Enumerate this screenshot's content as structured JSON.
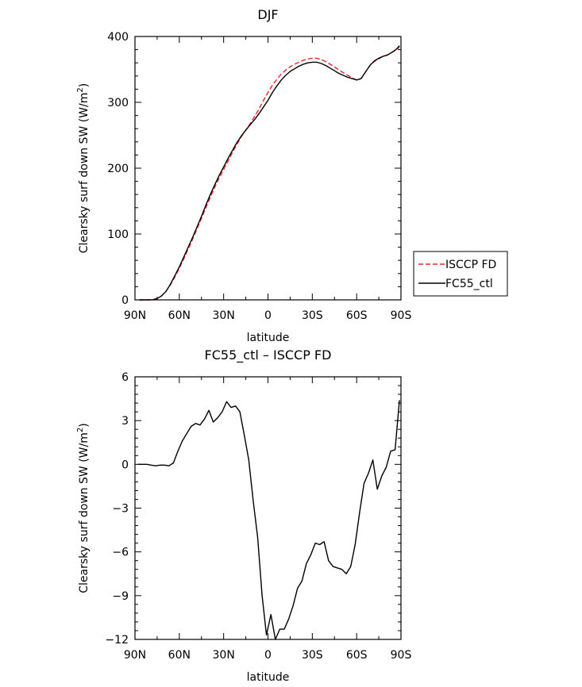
{
  "chart_data": [
    {
      "type": "line",
      "title": "DJF",
      "xlabel": "latitude",
      "ylabel": "Clearsky surf down SW (W/m",
      "ylabel_sup": "2",
      "ylabel_end": ")",
      "xlim": [
        90,
        -90
      ],
      "ylim": [
        0,
        400
      ],
      "xticks": [
        90,
        60,
        30,
        0,
        -30,
        -60,
        -90
      ],
      "xtick_labels": [
        "90N",
        "60N",
        "30N",
        "0",
        "30S",
        "60S",
        "90S"
      ],
      "yticks": [
        0,
        100,
        200,
        300,
        400
      ],
      "ytick_labels": [
        "0",
        "100",
        "200",
        "300",
        "400"
      ],
      "legend": "outside-right",
      "series": [
        {
          "name": "ISCCP FD",
          "color": "#e8262a",
          "dash": "dashed",
          "x": [
            87,
            84,
            81,
            78,
            75,
            72,
            69,
            66,
            63,
            60,
            57,
            54,
            51,
            48,
            45,
            42,
            39,
            36,
            33,
            30,
            27,
            24,
            21,
            18,
            15,
            12,
            9,
            6,
            3,
            0,
            -3,
            -6,
            -9,
            -12,
            -15,
            -18,
            -21,
            -24,
            -27,
            -30,
            -33,
            -36,
            -39,
            -42,
            -45,
            -48,
            -51,
            -54,
            -57,
            -60,
            -63,
            -66,
            -69,
            -72,
            -75,
            -78,
            -81,
            -84,
            -87,
            -89
          ],
          "y": [
            0,
            0,
            0,
            0.3,
            2,
            6,
            13,
            23,
            35,
            48,
            62,
            77,
            92,
            108,
            124,
            140,
            156,
            171,
            185,
            198,
            211,
            224,
            236,
            248,
            258,
            268,
            279,
            290,
            303,
            315,
            326,
            335,
            343,
            349,
            354,
            358,
            361,
            364,
            366,
            367,
            367,
            365,
            362,
            358,
            354,
            349,
            345,
            341,
            337,
            334,
            336,
            346,
            356,
            362,
            366,
            370,
            372,
            376,
            380,
            384
          ]
        },
        {
          "name": "FC55_ctl",
          "color": "#000000",
          "dash": "solid",
          "x": [
            87,
            84,
            81,
            78,
            75,
            72,
            69,
            66,
            63,
            60,
            57,
            54,
            51,
            48,
            45,
            42,
            39,
            36,
            33,
            30,
            27,
            24,
            21,
            18,
            15,
            12,
            9,
            6,
            3,
            0,
            -3,
            -6,
            -9,
            -12,
            -15,
            -18,
            -21,
            -24,
            -27,
            -30,
            -33,
            -36,
            -39,
            -42,
            -45,
            -48,
            -51,
            -54,
            -57,
            -60,
            -63,
            -66,
            -69,
            -72,
            -75,
            -78,
            -81,
            -84,
            -87,
            -89
          ],
          "y": [
            0,
            0,
            0,
            0.2,
            2,
            6,
            13,
            24,
            37,
            50,
            65,
            80,
            95,
            111,
            127,
            144,
            160,
            175,
            189,
            202,
            215,
            227,
            239,
            249,
            258,
            266,
            274,
            283,
            293,
            303,
            315,
            325,
            334,
            341,
            347,
            351,
            355,
            358,
            360,
            361,
            361,
            359,
            356,
            352,
            348,
            344,
            341,
            338,
            336,
            334,
            336,
            346,
            356,
            363,
            367,
            370,
            372,
            376,
            381,
            386
          ]
        }
      ]
    },
    {
      "type": "line",
      "title": "FC55_ctl – ISCCP FD",
      "xlabel": "latitude",
      "ylabel": "Clearsky surf down SW (W/m",
      "ylabel_sup": "2",
      "ylabel_end": ")",
      "xlim": [
        90,
        -90
      ],
      "ylim": [
        -12,
        6
      ],
      "xticks": [
        90,
        60,
        30,
        0,
        -30,
        -60,
        -90
      ],
      "xtick_labels": [
        "90N",
        "60N",
        "30N",
        "0",
        "30S",
        "60S",
        "90S"
      ],
      "yticks": [
        -12,
        -9,
        -6,
        -3,
        0,
        3,
        6
      ],
      "ytick_labels": [
        "−12",
        "−9",
        "−6",
        "−3",
        "0",
        "3",
        "6"
      ],
      "series": [
        {
          "color": "#000000",
          "dash": "solid",
          "x": [
            88,
            85,
            82,
            79,
            76,
            73,
            70,
            67,
            64,
            61,
            58,
            55,
            52,
            49,
            46,
            43,
            40,
            37,
            34,
            31,
            28,
            25,
            22,
            19,
            16,
            13,
            10,
            7,
            4,
            1,
            -2,
            -5,
            -8,
            -11,
            -14,
            -17,
            -20,
            -23,
            -26,
            -29,
            -32,
            -35,
            -38,
            -41,
            -44,
            -47,
            -50,
            -53,
            -56,
            -59,
            -62,
            -65,
            -68,
            -71,
            -74,
            -77,
            -80,
            -83,
            -86,
            -89
          ],
          "y": [
            0,
            0,
            0,
            -0.05,
            -0.1,
            -0.05,
            -0.05,
            -0.1,
            0.1,
            0.9,
            1.6,
            2.1,
            2.6,
            2.8,
            2.7,
            3.1,
            3.7,
            2.9,
            3.2,
            3.6,
            4.3,
            3.9,
            4.0,
            3.6,
            2.0,
            0.3,
            -2.5,
            -5.0,
            -9.0,
            -11.7,
            -10.3,
            -12.0,
            -11.3,
            -11.3,
            -10.6,
            -9.7,
            -8.5,
            -8.0,
            -6.8,
            -6.2,
            -5.4,
            -5.5,
            -5.3,
            -6.6,
            -7.0,
            -7.1,
            -7.2,
            -7.5,
            -7.0,
            -5.5,
            -3.3,
            -1.3,
            -0.6,
            0.3,
            -1.7,
            -0.8,
            -0.2,
            0.9,
            1.0,
            4.4
          ]
        }
      ]
    }
  ]
}
